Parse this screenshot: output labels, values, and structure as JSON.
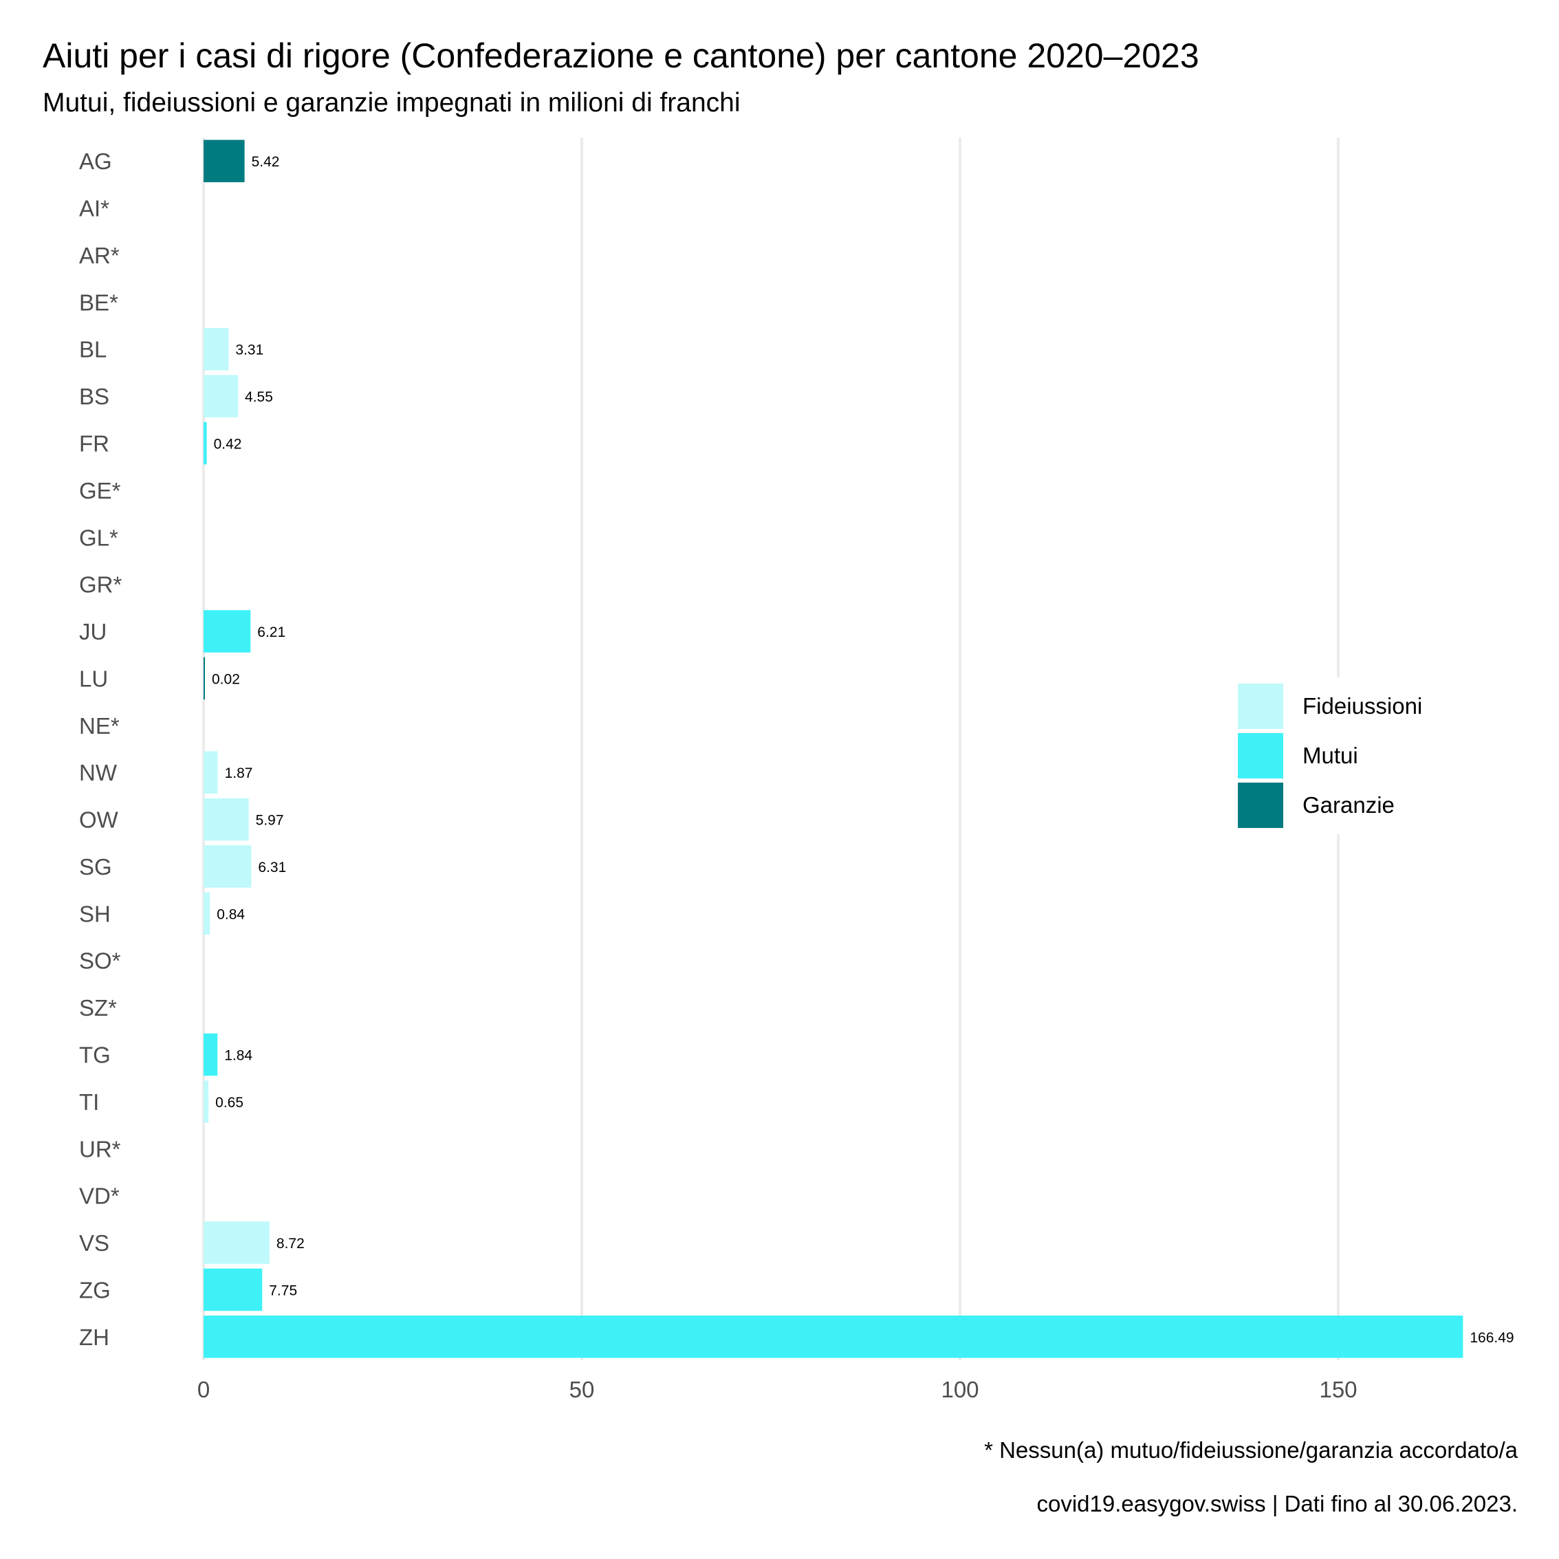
{
  "chart_data": {
    "type": "bar",
    "orientation": "horizontal",
    "title": "Aiuti per i casi di rigore (Confederazione e cantone) per cantone 2020–2023",
    "subtitle": "Mutui, fideiussioni e garanzie impegnati in milioni di franchi",
    "xlim": [
      0,
      175
    ],
    "x_ticks": [
      "0",
      "50",
      "100",
      "150"
    ],
    "x_tick_values": [
      0,
      50,
      100,
      150
    ],
    "grid": true,
    "legend_position": "right",
    "series_colors": {
      "Fideiussioni": "#bff9fb",
      "Mutui": "#3df1f6",
      "Garanzie": "#007b80"
    },
    "legend": [
      "Fideiussioni",
      "Mutui",
      "Garanzie"
    ],
    "bars": [
      {
        "category": "AG",
        "value": 5.42,
        "label": "5.42",
        "type": "Garanzie"
      },
      {
        "category": "AI*",
        "value": null,
        "label": "",
        "type": ""
      },
      {
        "category": "AR*",
        "value": null,
        "label": "",
        "type": ""
      },
      {
        "category": "BE*",
        "value": null,
        "label": "",
        "type": ""
      },
      {
        "category": "BL",
        "value": 3.31,
        "label": "3.31",
        "type": "Fideiussioni"
      },
      {
        "category": "BS",
        "value": 4.55,
        "label": "4.55",
        "type": "Fideiussioni"
      },
      {
        "category": "FR",
        "value": 0.42,
        "label": "0.42",
        "type": "Mutui"
      },
      {
        "category": "GE*",
        "value": null,
        "label": "",
        "type": ""
      },
      {
        "category": "GL*",
        "value": null,
        "label": "",
        "type": ""
      },
      {
        "category": "GR*",
        "value": null,
        "label": "",
        "type": ""
      },
      {
        "category": "JU",
        "value": 6.21,
        "label": "6.21",
        "type": "Mutui"
      },
      {
        "category": "LU",
        "value": 0.02,
        "label": "0.02",
        "type": "Garanzie"
      },
      {
        "category": "NE*",
        "value": null,
        "label": "",
        "type": ""
      },
      {
        "category": "NW",
        "value": 1.87,
        "label": "1.87",
        "type": "Fideiussioni"
      },
      {
        "category": "OW",
        "value": 5.97,
        "label": "5.97",
        "type": "Fideiussioni"
      },
      {
        "category": "SG",
        "value": 6.31,
        "label": "6.31",
        "type": "Fideiussioni"
      },
      {
        "category": "SH",
        "value": 0.84,
        "label": "0.84",
        "type": "Fideiussioni"
      },
      {
        "category": "SO*",
        "value": null,
        "label": "",
        "type": ""
      },
      {
        "category": "SZ*",
        "value": null,
        "label": "",
        "type": ""
      },
      {
        "category": "TG",
        "value": 1.84,
        "label": "1.84",
        "type": "Mutui"
      },
      {
        "category": "TI",
        "value": 0.65,
        "label": "0.65",
        "type": "Fideiussioni"
      },
      {
        "category": "UR*",
        "value": null,
        "label": "",
        "type": ""
      },
      {
        "category": "VD*",
        "value": null,
        "label": "",
        "type": ""
      },
      {
        "category": "VS",
        "value": 8.72,
        "label": "8.72",
        "type": "Fideiussioni"
      },
      {
        "category": "ZG",
        "value": 7.75,
        "label": "7.75",
        "type": "Mutui"
      },
      {
        "category": "ZH",
        "value": 166.49,
        "label": "166.49",
        "type": "Mutui"
      }
    ],
    "caption_note": "* Nessun(a) mutuo/fideiussione/garanzia accordato/a",
    "caption_source": "covid19.easygov.swiss | Dati fino al 30.06.2023."
  }
}
